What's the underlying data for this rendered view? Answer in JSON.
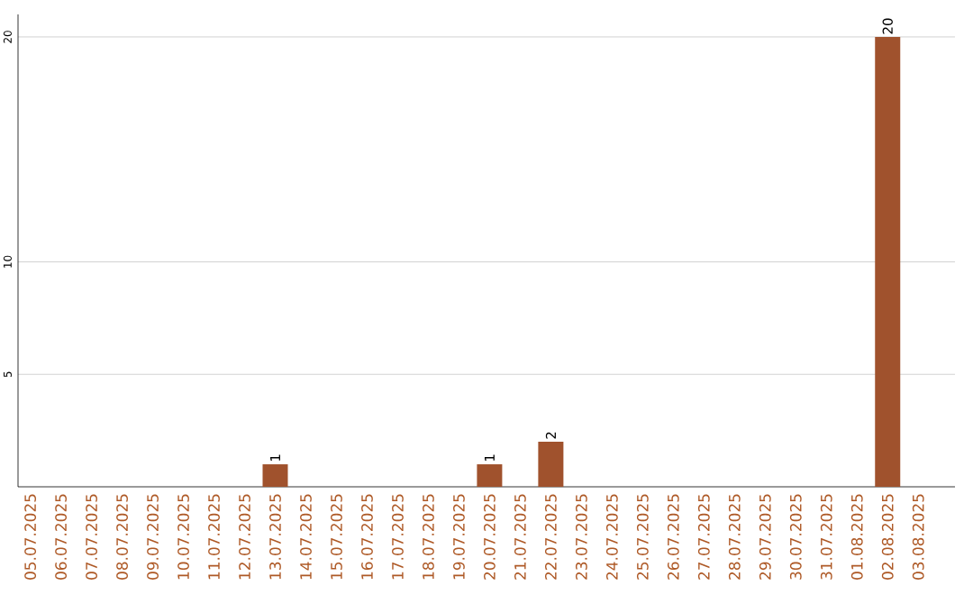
{
  "chart_data": {
    "type": "bar",
    "categories": [
      "05.07.2025",
      "06.07.2025",
      "07.07.2025",
      "08.07.2025",
      "09.07.2025",
      "10.07.2025",
      "11.07.2025",
      "12.07.2025",
      "13.07.2025",
      "14.07.2025",
      "15.07.2025",
      "16.07.2025",
      "17.07.2025",
      "18.07.2025",
      "19.07.2025",
      "20.07.2025",
      "21.07.2025",
      "22.07.2025",
      "23.07.2025",
      "24.07.2025",
      "25.07.2025",
      "26.07.2025",
      "27.07.2025",
      "28.07.2025",
      "29.07.2025",
      "30.07.2025",
      "31.07.2025",
      "01.08.2025",
      "02.08.2025",
      "03.08.2025"
    ],
    "values": [
      0,
      0,
      0,
      0,
      0,
      0,
      0,
      0,
      1,
      0,
      0,
      0,
      0,
      0,
      0,
      1,
      0,
      2,
      0,
      0,
      0,
      0,
      0,
      0,
      0,
      0,
      0,
      0,
      20,
      0
    ],
    "value_labels": [
      null,
      null,
      null,
      null,
      null,
      null,
      null,
      null,
      "1",
      null,
      null,
      null,
      null,
      null,
      null,
      "1",
      null,
      "2",
      null,
      null,
      null,
      null,
      null,
      null,
      null,
      null,
      null,
      null,
      "20",
      null
    ],
    "color": "#a0522d",
    "ylim": [
      0,
      21
    ],
    "yticks": [
      5,
      10,
      20
    ],
    "grid": "y"
  }
}
